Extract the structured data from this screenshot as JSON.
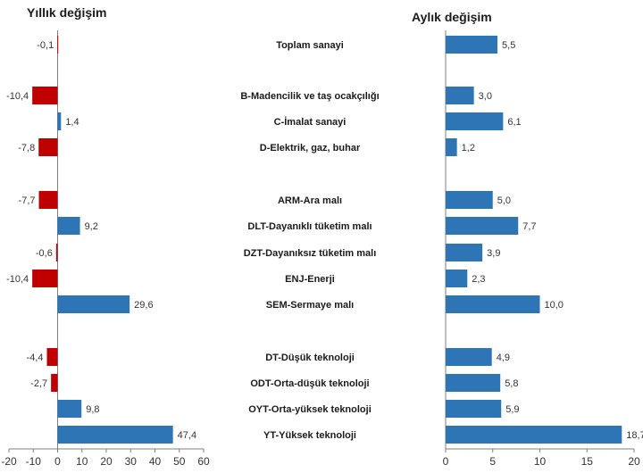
{
  "colors": {
    "positive": "#2E75B6",
    "negative": "#C00000",
    "axis": "#7f7f7f"
  },
  "chart_data": [
    {
      "type": "bar",
      "orientation": "horizontal",
      "title": "Yıllık değişim",
      "xlim": [
        -20,
        60
      ],
      "ticks": [
        "-20",
        "-10",
        "0",
        "10",
        "20",
        "30",
        "40",
        "50",
        "60"
      ],
      "grid": false,
      "categories": [
        "Toplam sanayi",
        "B-Madencilik ve taş ocakçılığı",
        "C-İmalat sanayi",
        "D-Elektrik, gaz, buhar",
        "ARM-Ara malı",
        "DLT-Dayanıklı tüketim malı",
        "DZT-Dayanıksız tüketim malı",
        "ENJ-Enerji",
        "SEM-Sermaye malı",
        "DT-Düşük teknoloji",
        "ODT-Orta-düşük teknoloji",
        "OYT-Orta-yüksek teknoloji",
        "YT-Yüksek teknoloji"
      ],
      "values": [
        -0.1,
        -10.4,
        1.4,
        -7.8,
        -7.7,
        9.2,
        -0.6,
        -10.4,
        29.6,
        -4.4,
        -2.7,
        9.8,
        47.4
      ],
      "labels": [
        "-0,1",
        "-10,4",
        "1,4",
        "-7,8",
        "-7,7",
        "9,2",
        "-0,6",
        "-10,4",
        "29,6",
        "-4,4",
        "-2,7",
        "9,8",
        "47,4"
      ]
    },
    {
      "type": "bar",
      "orientation": "horizontal",
      "title": "Aylık değişim",
      "xlim": [
        0,
        20
      ],
      "ticks": [
        "0",
        "5",
        "10",
        "15",
        "20"
      ],
      "grid": false,
      "categories": [
        "Toplam sanayi",
        "B-Madencilik ve taş ocakçılığı",
        "C-İmalat sanayi",
        "D-Elektrik, gaz, buhar",
        "ARM-Ara malı",
        "DLT-Dayanıklı tüketim malı",
        "DZT-Dayanıksız tüketim malı",
        "ENJ-Enerji",
        "SEM-Sermaye malı",
        "DT-Düşük teknoloji",
        "ODT-Orta-düşük teknoloji",
        "OYT-Orta-yüksek teknoloji",
        "YT-Yüksek teknoloji"
      ],
      "values": [
        5.5,
        3.0,
        6.1,
        1.2,
        5.0,
        7.7,
        3.9,
        2.3,
        10.0,
        4.9,
        5.8,
        5.9,
        18.7
      ],
      "labels": [
        "5,5",
        "3,0",
        "6,1",
        "1,2",
        "5,0",
        "7,7",
        "3,9",
        "2,3",
        "10,0",
        "4,9",
        "5,8",
        "5,9",
        "18,7"
      ]
    }
  ]
}
